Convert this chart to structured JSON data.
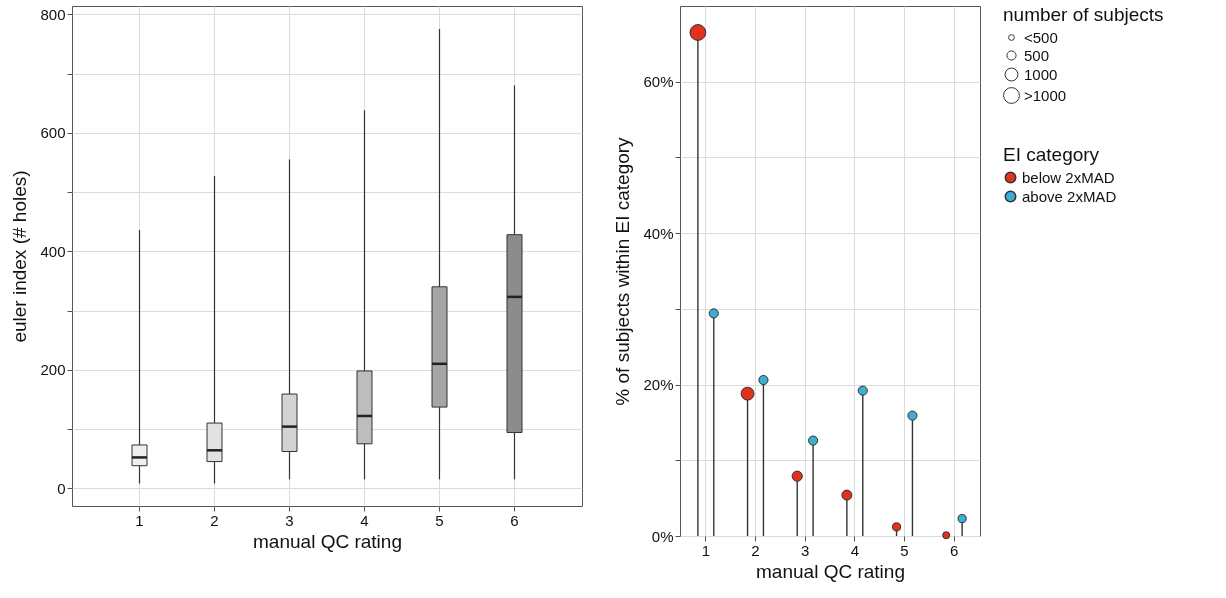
{
  "chart_data": [
    {
      "type": "box",
      "categories": [
        "1",
        "2",
        "3",
        "4",
        "5",
        "6"
      ],
      "xlabel": "manual QC rating",
      "ylabel": "euler index (# holes)",
      "ylim": [
        -30,
        814
      ],
      "yticks": [
        0,
        {
          "value": 100,
          "label": null
        },
        200,
        {
          "value": 300,
          "label": null
        },
        400,
        {
          "value": 500,
          "label": null
        },
        600,
        {
          "value": 700,
          "label": null
        },
        800
      ],
      "grid": true,
      "colors": [
        "#efefef",
        "#e2e2e2",
        "#d3d3d3",
        "#bdbdbd",
        "#a6a6a6",
        "#8c8c8c"
      ],
      "boxes": [
        {
          "low": 8,
          "q1": 38,
          "median": 52,
          "q3": 73,
          "high": 436
        },
        {
          "low": 8,
          "q1": 45,
          "median": 64,
          "q3": 110,
          "high": 527
        },
        {
          "low": 15,
          "q1": 62,
          "median": 104,
          "q3": 159,
          "high": 555
        },
        {
          "low": 15,
          "q1": 75,
          "median": 122,
          "q3": 198,
          "high": 638
        },
        {
          "low": 15,
          "q1": 137,
          "median": 210,
          "q3": 340,
          "high": 775
        },
        {
          "low": 15,
          "q1": 94,
          "median": 323,
          "q3": 428,
          "high": 680
        }
      ]
    },
    {
      "type": "lollipop",
      "categories": [
        "1",
        "2",
        "3",
        "4",
        "5",
        "6"
      ],
      "xlabel": "manual QC rating",
      "ylabel": "% of subjects within EI category",
      "ylim": [
        0,
        70
      ],
      "yticks": [
        {
          "value": 0,
          "label": "0%"
        },
        {
          "value": 10,
          "label": null
        },
        {
          "value": 20,
          "label": "20%"
        },
        {
          "value": 30,
          "label": null
        },
        {
          "value": 40,
          "label": "40%"
        },
        {
          "value": 50,
          "label": null
        },
        {
          "value": 60,
          "label": "60%"
        }
      ],
      "grid": true,
      "legend": "right",
      "legend_title": "EI category",
      "annotations": [
        "number of subjects"
      ],
      "size_legend": [
        {
          "value": 200,
          "label": "<500"
        },
        500,
        1000,
        {
          "value": 1500,
          "label": ">1000"
        }
      ],
      "series": [
        {
          "name": "below 2xMAD",
          "color": "#e0321f",
          "values": [
            66.5,
            18.8,
            7.9,
            5.4,
            1.2,
            0.1
          ],
          "sizes": [
            1500,
            1000,
            620,
            600,
            400,
            300
          ]
        },
        {
          "name": "above 2xMAD",
          "color": "#3eaed0",
          "values": [
            29.4,
            20.6,
            12.6,
            19.2,
            15.9,
            2.3
          ],
          "sizes": [
            500,
            500,
            500,
            500,
            500,
            400
          ]
        }
      ]
    }
  ]
}
